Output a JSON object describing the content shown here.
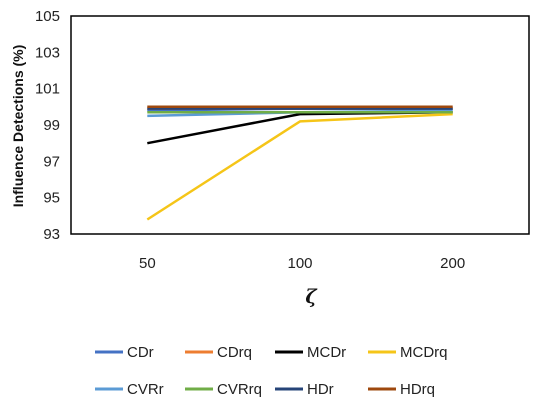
{
  "chart_data": {
    "type": "line",
    "x": [
      "50",
      "100",
      "200"
    ],
    "xlabel": "ζ",
    "ylabel": "Influence Detections (%)",
    "ylim": [
      93,
      105
    ],
    "yticks": [
      93,
      95,
      97,
      99,
      101,
      103,
      105
    ],
    "grid": "off",
    "legend_position": "bottom",
    "series": [
      {
        "name": "CDr",
        "color": "#4472C4",
        "values": [
          99.8,
          99.9,
          99.9
        ]
      },
      {
        "name": "CDrq",
        "color": "#ED7D31",
        "values": [
          99.9,
          99.9,
          99.9
        ]
      },
      {
        "name": "MCDr",
        "color": "#000000",
        "values": [
          98.0,
          99.6,
          99.7
        ]
      },
      {
        "name": "MCDrq",
        "color": "#F5C518",
        "values": [
          93.8,
          99.2,
          99.6
        ]
      },
      {
        "name": "CVRr",
        "color": "#5B9BD5",
        "values": [
          99.5,
          99.7,
          99.8
        ]
      },
      {
        "name": "CVRrq",
        "color": "#70AD47",
        "values": [
          99.7,
          99.7,
          99.7
        ]
      },
      {
        "name": "HDr",
        "color": "#264478",
        "values": [
          99.9,
          99.9,
          99.9
        ]
      },
      {
        "name": "HDrq",
        "color": "#9E480E",
        "values": [
          100.0,
          100.0,
          100.0
        ]
      }
    ]
  }
}
